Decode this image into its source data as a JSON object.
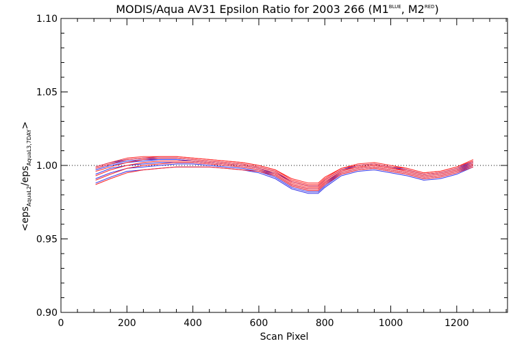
{
  "chart_data": {
    "type": "line",
    "title": {
      "main": "MODIS/Aqua AV31 Epsilon Ratio for 2003 266 (M1",
      "m1_sup": "BLUE",
      "mid": ", M2",
      "m2_sup": "RED",
      "end": ")"
    },
    "xlabel": "Scan Pixel",
    "ylabel": {
      "p1": "<eps",
      "sub1": "AquaL2",
      "p2": "/eps",
      "sub2": "AquaL3,7DAY",
      "p3": ">"
    },
    "xlim": [
      0,
      1354
    ],
    "ylim": [
      0.9,
      1.1
    ],
    "xticks": [
      "0",
      "200",
      "400",
      "600",
      "800",
      "1000",
      "1200"
    ],
    "yticks": [
      "0.90",
      "0.95",
      "1.00",
      "1.05",
      "1.10"
    ],
    "reference_line": 1.0,
    "colors": {
      "M1": "#1a1aff",
      "M2": "#ff1a1a"
    },
    "series": [
      {
        "group": "M1",
        "color": "#2f2fe6",
        "x": [
          105,
          150,
          200,
          250,
          300,
          350,
          400,
          450,
          500,
          550,
          600,
          650,
          700,
          750,
          780,
          800,
          850,
          900,
          950,
          1000,
          1050,
          1100,
          1150,
          1200,
          1250
        ],
        "y": [
          0.999,
          1.002,
          1.004,
          1.005,
          1.005,
          1.005,
          1.004,
          1.003,
          1.002,
          1.001,
          0.999,
          0.996,
          0.989,
          0.986,
          0.986,
          0.99,
          0.997,
          1.0,
          1.001,
          0.999,
          0.997,
          0.994,
          0.995,
          0.998,
          1.003
        ]
      },
      {
        "group": "M1",
        "color": "#2f2fe6",
        "x": [
          105,
          150,
          200,
          250,
          300,
          350,
          400,
          450,
          500,
          550,
          600,
          650,
          700,
          750,
          780,
          800,
          850,
          900,
          950,
          1000,
          1050,
          1100,
          1150,
          1200,
          1250
        ],
        "y": [
          0.997,
          1.0,
          1.002,
          1.003,
          1.004,
          1.004,
          1.003,
          1.002,
          1.001,
          1.0,
          0.998,
          0.994,
          0.987,
          0.984,
          0.984,
          0.988,
          0.996,
          0.999,
          1.0,
          0.998,
          0.996,
          0.993,
          0.994,
          0.997,
          1.002
        ]
      },
      {
        "group": "M1",
        "color": "#2f2fe6",
        "x": [
          105,
          150,
          200,
          250,
          300,
          350,
          400,
          450,
          500,
          550,
          600,
          650,
          700,
          750,
          780,
          800,
          850,
          900,
          950,
          1000,
          1050,
          1100,
          1150,
          1200,
          1250
        ],
        "y": [
          0.994,
          0.998,
          1.0,
          1.001,
          1.002,
          1.002,
          1.002,
          1.001,
          1.0,
          0.999,
          0.997,
          0.993,
          0.986,
          0.983,
          0.983,
          0.987,
          0.995,
          0.998,
          0.999,
          0.997,
          0.995,
          0.992,
          0.993,
          0.996,
          1.001
        ]
      },
      {
        "group": "M1",
        "color": "#2f2fe6",
        "x": [
          105,
          150,
          200,
          250,
          300,
          350,
          400,
          450,
          500,
          550,
          600,
          650,
          700,
          750,
          780,
          800,
          850,
          900,
          950,
          1000,
          1050,
          1100,
          1150,
          1200,
          1250
        ],
        "y": [
          0.991,
          0.995,
          0.998,
          0.999,
          1.0,
          1.001,
          1.001,
          1.0,
          0.999,
          0.998,
          0.996,
          0.992,
          0.985,
          0.982,
          0.982,
          0.986,
          0.994,
          0.997,
          0.998,
          0.996,
          0.994,
          0.991,
          0.992,
          0.995,
          1.0
        ]
      },
      {
        "group": "M1",
        "color": "#2f2fe6",
        "x": [
          105,
          150,
          200,
          250,
          300,
          350,
          400,
          450,
          500,
          550,
          600,
          650,
          700,
          750,
          780,
          800,
          850,
          900,
          950,
          1000,
          1050,
          1100,
          1150,
          1200,
          1250
        ],
        "y": [
          0.988,
          0.992,
          0.996,
          0.997,
          0.998,
          0.999,
          0.999,
          0.999,
          0.998,
          0.997,
          0.995,
          0.991,
          0.984,
          0.981,
          0.981,
          0.985,
          0.993,
          0.996,
          0.997,
          0.995,
          0.993,
          0.99,
          0.991,
          0.994,
          0.999
        ]
      },
      {
        "group": "M1",
        "color": "#2f2fe6",
        "x": [
          105,
          150,
          200,
          250,
          300,
          350,
          400,
          450,
          500,
          550,
          600,
          650,
          700,
          750,
          780,
          800,
          850,
          900,
          950,
          1000,
          1050,
          1100,
          1150,
          1200,
          1250
        ],
        "y": [
          0.998,
          1.001,
          1.003,
          1.004,
          1.004,
          1.004,
          1.003,
          1.002,
          1.001,
          1.0,
          0.998,
          0.995,
          0.989,
          0.986,
          0.986,
          0.99,
          0.997,
          1.0,
          1.001,
          0.999,
          0.997,
          0.994,
          0.995,
          0.998,
          1.002
        ]
      },
      {
        "group": "M2",
        "color": "#ff2020",
        "x": [
          105,
          150,
          200,
          250,
          300,
          350,
          400,
          450,
          500,
          550,
          600,
          650,
          700,
          750,
          780,
          800,
          850,
          900,
          950,
          1000,
          1050,
          1100,
          1150,
          1200,
          1250
        ],
        "y": [
          0.998,
          1.001,
          1.004,
          1.005,
          1.006,
          1.006,
          1.005,
          1.004,
          1.003,
          1.002,
          1.0,
          0.997,
          0.99,
          0.987,
          0.987,
          0.991,
          0.998,
          1.0,
          1.001,
          0.999,
          0.998,
          0.995,
          0.996,
          0.999,
          1.003
        ]
      },
      {
        "group": "M2",
        "color": "#ff2020",
        "x": [
          105,
          150,
          200,
          250,
          300,
          350,
          400,
          450,
          500,
          550,
          600,
          650,
          700,
          750,
          780,
          800,
          850,
          900,
          950,
          1000,
          1050,
          1100,
          1150,
          1200,
          1250
        ],
        "y": [
          0.996,
          0.999,
          1.002,
          1.004,
          1.005,
          1.005,
          1.004,
          1.003,
          1.002,
          1.001,
          0.999,
          0.996,
          0.989,
          0.986,
          0.986,
          0.99,
          0.997,
          0.999,
          1.0,
          0.998,
          0.997,
          0.994,
          0.995,
          0.998,
          1.002
        ]
      },
      {
        "group": "M2",
        "color": "#ff2020",
        "x": [
          105,
          150,
          200,
          250,
          300,
          350,
          400,
          450,
          500,
          550,
          600,
          650,
          700,
          750,
          780,
          800,
          850,
          900,
          950,
          1000,
          1050,
          1100,
          1150,
          1200,
          1250
        ],
        "y": [
          0.993,
          0.997,
          1.0,
          1.002,
          1.003,
          1.003,
          1.003,
          1.002,
          1.001,
          1.0,
          0.998,
          0.995,
          0.988,
          0.985,
          0.985,
          0.989,
          0.996,
          0.999,
          1.0,
          0.998,
          0.996,
          0.993,
          0.994,
          0.997,
          1.001
        ]
      },
      {
        "group": "M2",
        "color": "#ff2020",
        "x": [
          105,
          150,
          200,
          250,
          300,
          350,
          400,
          450,
          500,
          550,
          600,
          650,
          700,
          750,
          780,
          800,
          850,
          900,
          950,
          1000,
          1050,
          1100,
          1150,
          1200,
          1250
        ],
        "y": [
          0.99,
          0.994,
          0.998,
          1.0,
          1.001,
          1.002,
          1.002,
          1.001,
          1.0,
          0.999,
          0.997,
          0.994,
          0.987,
          0.984,
          0.984,
          0.988,
          0.995,
          0.998,
          0.999,
          0.997,
          0.995,
          0.992,
          0.993,
          0.996,
          1.0
        ]
      },
      {
        "group": "M2",
        "color": "#ff2020",
        "x": [
          105,
          150,
          200,
          250,
          300,
          350,
          400,
          450,
          500,
          550,
          600,
          650,
          700,
          750,
          780,
          800,
          850,
          900,
          950,
          1000,
          1050,
          1100,
          1150,
          1200,
          1250
        ],
        "y": [
          0.987,
          0.991,
          0.995,
          0.997,
          0.998,
          0.999,
          0.999,
          0.999,
          0.998,
          0.997,
          0.996,
          0.993,
          0.986,
          0.983,
          0.983,
          0.987,
          0.994,
          0.997,
          0.998,
          0.996,
          0.994,
          0.991,
          0.992,
          0.995,
          0.999
        ]
      },
      {
        "group": "M2",
        "color": "#ff2020",
        "x": [
          105,
          150,
          200,
          250,
          300,
          350,
          400,
          450,
          500,
          550,
          600,
          650,
          700,
          750,
          780,
          800,
          850,
          900,
          950,
          1000,
          1050,
          1100,
          1150,
          1200,
          1250
        ],
        "y": [
          0.999,
          1.002,
          1.005,
          1.006,
          1.006,
          1.006,
          1.005,
          1.004,
          1.003,
          1.002,
          1.0,
          0.997,
          0.991,
          0.988,
          0.988,
          0.992,
          0.998,
          1.001,
          1.002,
          1.0,
          0.998,
          0.995,
          0.996,
          0.999,
          1.004
        ]
      }
    ]
  }
}
